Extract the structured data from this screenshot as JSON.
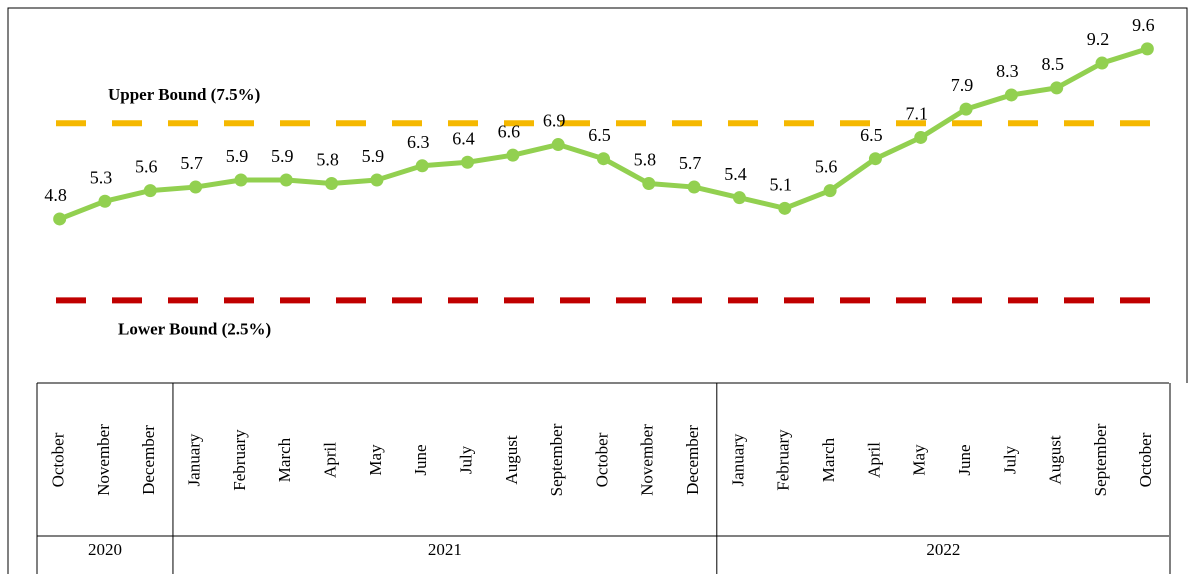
{
  "chart_data": {
    "type": "line",
    "categories": [
      "October",
      "November",
      "December",
      "January",
      "February",
      "March",
      "April",
      "May",
      "June",
      "July",
      "August",
      "September",
      "October",
      "November",
      "December",
      "January",
      "February",
      "March",
      "April",
      "May",
      "June",
      "July",
      "August",
      "September",
      "October"
    ],
    "year_groups": [
      {
        "label": "2020",
        "count": 3
      },
      {
        "label": "2021",
        "count": 12
      },
      {
        "label": "2022",
        "count": 10
      }
    ],
    "values": [
      4.8,
      5.3,
      5.6,
      5.7,
      5.9,
      5.9,
      5.8,
      5.9,
      6.3,
      6.4,
      6.6,
      6.9,
      6.5,
      5.8,
      5.7,
      5.4,
      5.1,
      5.6,
      6.5,
      7.1,
      7.9,
      8.3,
      8.5,
      9.2,
      9.6
    ],
    "color": "#92d050",
    "ylim": [
      0,
      10.5
    ],
    "reference_lines": [
      {
        "label": "Upper Bound (7.5%)",
        "value": 7.5,
        "color": "#f5b800"
      },
      {
        "label": "Lower Bound (2.5%)",
        "value": 2.5,
        "color": "#c00000"
      }
    ]
  }
}
